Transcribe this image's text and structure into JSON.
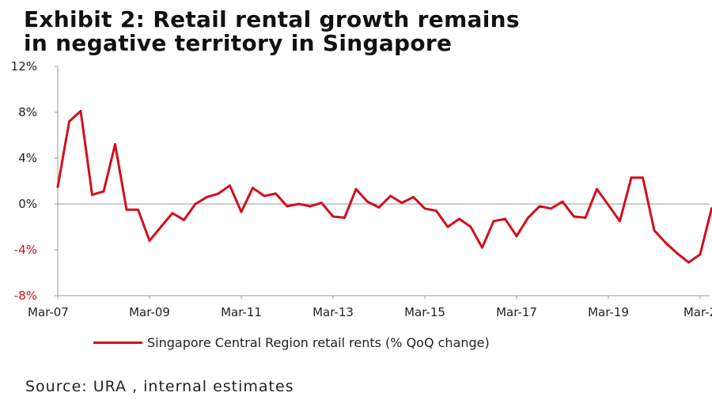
{
  "title_line1": "Exhibit 2:  Retail rental growth remains",
  "title_line2": "in negative territory in Singapore",
  "source": "Source:  URA , internal estimates",
  "colors": {
    "series": "#d0101d",
    "axis": "#999999",
    "negative_label": "#d0101d"
  },
  "chart_data": {
    "type": "line",
    "title": "Exhibit 2:  Retail rental growth remains in negative territory in Singapore",
    "xlabel": "",
    "ylabel": "",
    "ylim": [
      -8,
      12
    ],
    "y_ticks": [
      "12%",
      "8%",
      "4%",
      "0%",
      "-4%",
      "-8%"
    ],
    "y_tick_values": [
      12,
      8,
      4,
      0,
      -4,
      -8
    ],
    "x_tick_labels": [
      "Mar-07",
      "Mar-09",
      "Mar-11",
      "Mar-13",
      "Mar-15",
      "Mar-17",
      "Mar-19",
      "Mar-2"
    ],
    "x_tick_quarter_index": [
      0,
      8,
      16,
      24,
      32,
      40,
      48,
      56
    ],
    "grid": false,
    "legend_position": "bottom",
    "series": [
      {
        "name": "Singapore Central Region retail rents (% QoQ change)",
        "unit": "%",
        "start": "Mar-07",
        "frequency": "quarterly",
        "values": [
          1.5,
          7.2,
          8.1,
          0.8,
          1.1,
          5.2,
          -0.5,
          -0.5,
          -3.2,
          -2.0,
          -0.8,
          -1.4,
          0.0,
          0.6,
          0.9,
          1.6,
          -0.7,
          1.4,
          0.7,
          0.9,
          -0.2,
          0.0,
          -0.2,
          0.1,
          -1.1,
          -1.2,
          1.3,
          0.2,
          -0.3,
          0.7,
          0.1,
          0.6,
          -0.4,
          -0.6,
          -2.0,
          -1.3,
          -2.0,
          -3.8,
          -1.5,
          -1.3,
          -2.8,
          -1.2,
          -0.2,
          -0.4,
          0.2,
          -1.1,
          -1.2,
          1.3,
          -0.1,
          -1.5,
          2.3,
          2.3,
          -2.3,
          -3.4,
          -4.3,
          -5.1,
          -4.4,
          -0.4
        ]
      }
    ]
  }
}
